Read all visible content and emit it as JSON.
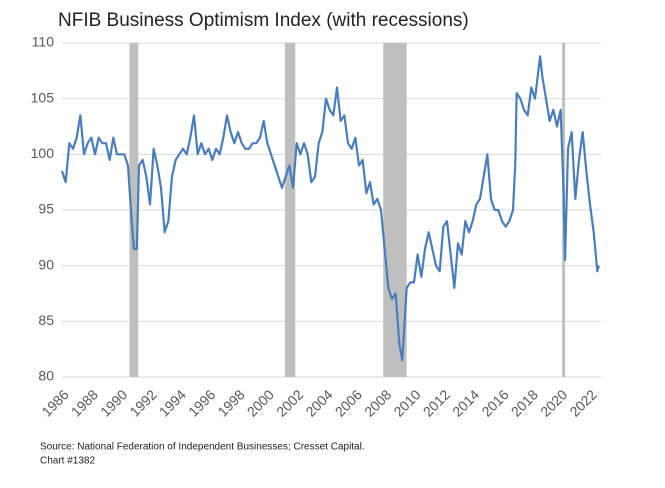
{
  "chart_data": {
    "type": "line",
    "title": "NFIB Business Optimism Index (with recessions)",
    "source": "Source: National Federation of Independent Businesses; Cresset Capital.",
    "note": "Chart #1382",
    "x": [
      1986,
      1986.25,
      1986.5,
      1986.75,
      1987,
      1987.25,
      1987.5,
      1987.75,
      1988,
      1988.25,
      1988.5,
      1988.75,
      1989,
      1989.25,
      1989.5,
      1989.75,
      1990,
      1990.25,
      1990.5,
      1990.75,
      1990.9,
      1991.1,
      1991.25,
      1991.5,
      1991.75,
      1992,
      1992.25,
      1992.5,
      1992.75,
      1993,
      1993.25,
      1993.5,
      1993.75,
      1994,
      1994.25,
      1994.5,
      1994.75,
      1995,
      1995.25,
      1995.5,
      1995.75,
      1996,
      1996.25,
      1996.5,
      1996.75,
      1997,
      1997.25,
      1997.5,
      1997.75,
      1998,
      1998.25,
      1998.5,
      1998.75,
      1999,
      1999.25,
      1999.5,
      1999.75,
      2000,
      2000.25,
      2000.5,
      2000.75,
      2001,
      2001.25,
      2001.5,
      2001.75,
      2002,
      2002.25,
      2002.5,
      2002.75,
      2003,
      2003.25,
      2003.5,
      2003.75,
      2004,
      2004.25,
      2004.5,
      2004.75,
      2005,
      2005.25,
      2005.5,
      2005.75,
      2006,
      2006.25,
      2006.5,
      2006.75,
      2007,
      2007.25,
      2007.5,
      2007.75,
      2008,
      2008.25,
      2008.5,
      2008.75,
      2009,
      2009.2,
      2009.5,
      2009.75,
      2010,
      2010.25,
      2010.5,
      2010.75,
      2011,
      2011.25,
      2011.5,
      2011.75,
      2012,
      2012.25,
      2012.5,
      2012.75,
      2013,
      2013.25,
      2013.5,
      2013.75,
      2014,
      2014.25,
      2014.5,
      2014.75,
      2015,
      2015.25,
      2015.5,
      2015.75,
      2016,
      2016.25,
      2016.5,
      2016.75,
      2016.9,
      2017,
      2017.25,
      2017.5,
      2017.75,
      2018,
      2018.25,
      2018.6,
      2018.75,
      2019,
      2019.25,
      2019.5,
      2019.75,
      2020,
      2020.2,
      2020.3,
      2020.5,
      2020.75,
      2021,
      2021.25,
      2021.5,
      2021.75,
      2022,
      2022.25,
      2022.5,
      2022.6
    ],
    "series": [
      {
        "name": "NFIB Business Optimism Index",
        "color": "#4a7ebb",
        "values": [
          98.5,
          97.5,
          101,
          100.5,
          101.5,
          103.5,
          100,
          101,
          101.5,
          100,
          101.5,
          101,
          101,
          99.5,
          101.5,
          100,
          100,
          100,
          99,
          94,
          91.5,
          91.5,
          99,
          99.5,
          98,
          95.5,
          100.5,
          99,
          97,
          93,
          94,
          98,
          99.5,
          100,
          100.5,
          100,
          101.5,
          103.5,
          100,
          101,
          100,
          100.5,
          99.5,
          100.5,
          100,
          101.5,
          103.5,
          102,
          101,
          102,
          101,
          100.5,
          100.5,
          101,
          101,
          101.5,
          103,
          101,
          100,
          99,
          98,
          97,
          98,
          99,
          97,
          101,
          100,
          101,
          100,
          97.5,
          98,
          101,
          102,
          105,
          104,
          103.5,
          106,
          103,
          103.5,
          101,
          100.5,
          101.5,
          99,
          99.5,
          96.5,
          97.5,
          95.5,
          96,
          95,
          91.5,
          88,
          87,
          87.5,
          83,
          81.5,
          88,
          88.5,
          88.5,
          91,
          89,
          91.5,
          93,
          91.5,
          90,
          89.5,
          93.5,
          94,
          91,
          88,
          92,
          91,
          94,
          93,
          94,
          95.5,
          96,
          98,
          100,
          96,
          95,
          95,
          94,
          93.5,
          94,
          95,
          99,
          105.5,
          105,
          104,
          103.5,
          106,
          105,
          108.8,
          107,
          105,
          103,
          104,
          102.5,
          104,
          96.5,
          90.5,
          100.5,
          102,
          96,
          99.5,
          102,
          98.5,
          95.5,
          93,
          89.5,
          90
        ]
      }
    ],
    "recessions": [
      [
        1990.6,
        1991.2
      ],
      [
        2001.2,
        2001.9
      ],
      [
        2007.9,
        2009.5
      ],
      [
        2020.1,
        2020.3
      ]
    ],
    "recession_color": "#bfbfbf",
    "xlim": [
      1986,
      2022.75
    ],
    "xticks": [
      1986,
      1988,
      1990,
      1992,
      1994,
      1996,
      1998,
      2000,
      2002,
      2004,
      2006,
      2008,
      2010,
      2012,
      2014,
      2016,
      2018,
      2020,
      2022
    ],
    "ylim": [
      80,
      110
    ],
    "yticks": [
      80,
      85,
      90,
      95,
      100,
      105,
      110
    ],
    "grid": true
  }
}
